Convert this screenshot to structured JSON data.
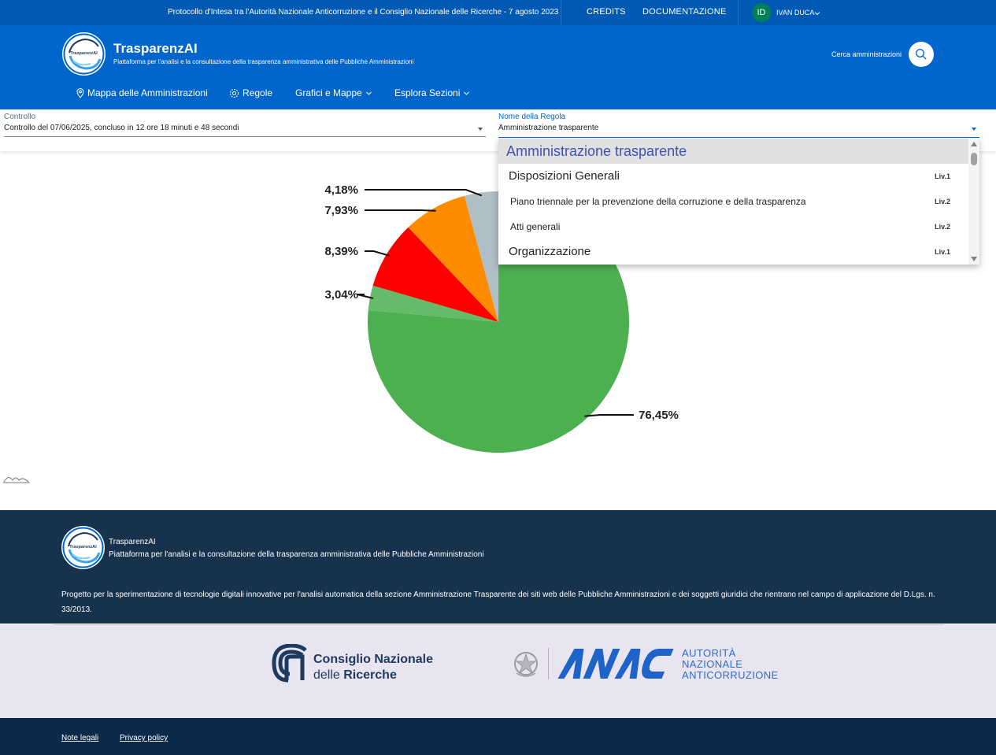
{
  "topbar": {
    "protocol": "Protocollo d'Intesa tra l'Autorità Nazionale Anticorruzione e il Consiglio Nazionale delle Ricerche - 7 agosto 2023",
    "credits": "CREDITS",
    "docs": "DOCUMENTAZIONE",
    "user_initials": "ID",
    "user_name": "IVAN DUCA",
    "colors": {
      "bar": "#0059b3",
      "avatar": "#008055"
    }
  },
  "header": {
    "logo_text": "TrasparenzAI",
    "brand": "TrasparenzAI",
    "tagline": "Piattaforma per l'analisi e la consultazione della trasparenza amministrativa delle Pubbliche Amministrazioni",
    "search_label": "Cerca amministrazioni",
    "search_icon": "search-icon",
    "color": "#0066cc"
  },
  "nav": {
    "map": "Mappa delle Amministrazioni",
    "rules": "Regole",
    "charts": "Grafici e Mappe",
    "sections": "Esplora Sezioni"
  },
  "filters": {
    "control": {
      "label": "Controllo",
      "value": "Controllo del 07/06/2025, concluso in 12 ore 18 minuti e 48 secondi"
    },
    "rule": {
      "label": "Nome della Regola",
      "value": "Amministrazione trasparente"
    }
  },
  "dropdown": {
    "options": [
      {
        "label": "Amministrazione trasparente",
        "level": "",
        "selected": true
      },
      {
        "label": "Disposizioni Generali",
        "level": "Liv.1"
      },
      {
        "label": "Piano triennale per la prevenzione della corruzione e della trasparenza",
        "level": "Liv.2"
      },
      {
        "label": "Atti generali",
        "level": "Liv.2"
      },
      {
        "label": "Organizzazione",
        "level": "Liv.1"
      }
    ]
  },
  "chart_data": {
    "type": "pie",
    "values": [
      76.45,
      3.04,
      8.39,
      7.93,
      4.18
    ],
    "labels": [
      "76,45%",
      "3,04%",
      "8,39%",
      "7,93%",
      "4,18%"
    ],
    "colors": [
      "#4caf50",
      "#66bb6a",
      "#ff0000",
      "#ff8c00",
      "#b0bec5"
    ]
  },
  "footer": {
    "logo_text": "TrasparenzAI",
    "brand": "TrasparenzAI",
    "tagline": "Piattaforma per l'analisi e la consultazione della trasparenza amministrativa delle Pubbliche Amministrazioni",
    "description": "Progetto per la sperimentazione di tecnologie digitali innovative per l'analisi automatica della sezione Amministrazione Trasparente dei siti web delle Pubbliche Amministrazioni e dei soggetti giuridici che rientrano nel campo di applicazione del D.Lgs. n. 33/2013."
  },
  "partners": {
    "cnr_line1": "Consiglio Nazionale",
    "cnr_line2_a": "delle ",
    "cnr_line2_b": "Ricerche",
    "anac_line1": "AUTORITÀ",
    "anac_line2": "NAZIONALE",
    "anac_line3": "ANTICORRUZIONE"
  },
  "bottom": {
    "legal": "Note legali",
    "privacy": "Privacy policy"
  }
}
